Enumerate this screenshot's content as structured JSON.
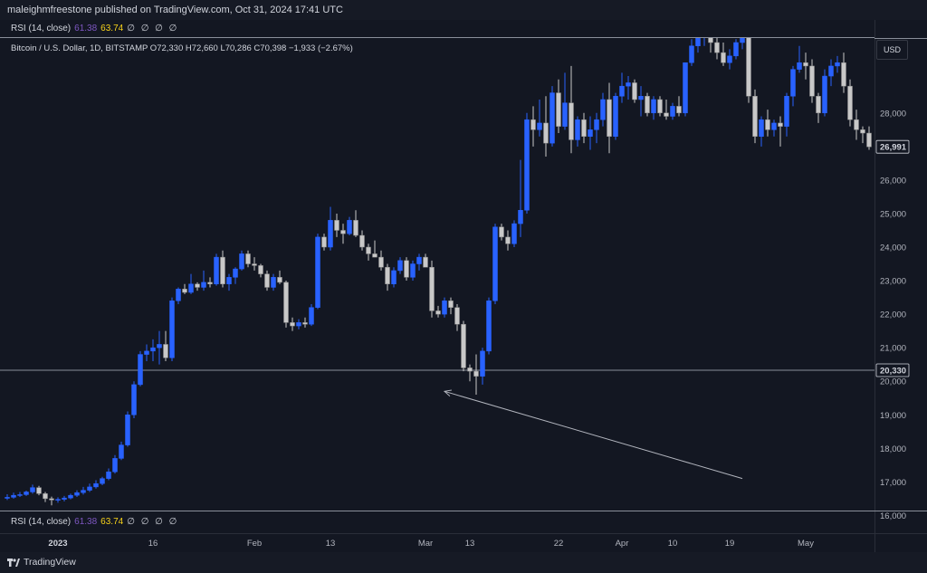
{
  "header": {
    "publisher_line": "maleighmfreestone published on TradingView.com, Oct 31, 2024 17:41 UTC"
  },
  "indicator": {
    "name": "RSI (14, close)",
    "value1": "61.38",
    "value2": "63.74",
    "placeholders": "∅ ∅ ∅ ∅"
  },
  "symbol_line": "Bitcoin / U.S. Dollar, 1D, BITSTAMP  O72,330  H72,660  L70,286  C70,398  −1,933 (−2.67%)",
  "currency": "USD",
  "footer": {
    "brand": "TradingView"
  },
  "colors": {
    "background": "#131722",
    "up": "#2962ff",
    "down": "#c8c8c8",
    "line": "#8a8f9a"
  },
  "chart_data": {
    "type": "candlestick",
    "title": "Bitcoin / U.S. Dollar, 1D, BITSTAMP",
    "ylabel": "USD",
    "ylim": [
      15000,
      29600
    ],
    "yticks": [
      "16,000",
      "17,000",
      "18,000",
      "19,000",
      "20,000",
      "21,000",
      "22,000",
      "23,000",
      "24,000",
      "25,000",
      "26,000",
      "28,000"
    ],
    "price_labels": {
      "horizontal_line": "20,330",
      "last_price": "26,991"
    },
    "horizontal_line_price": 20330,
    "xticks": [
      "2023",
      "16",
      "Feb",
      "13",
      "Mar",
      "13",
      "22",
      "Apr",
      "10",
      "19",
      "May"
    ],
    "annotations": [
      {
        "type": "arrow",
        "from": {
          "index": 116,
          "price": 17100
        },
        "to": {
          "index": 69,
          "price": 19700
        }
      }
    ],
    "candles": [
      [
        16510,
        16630,
        16460,
        16540
      ],
      [
        16540,
        16680,
        16500,
        16600
      ],
      [
        16600,
        16700,
        16550,
        16620
      ],
      [
        16620,
        16740,
        16580,
        16700
      ],
      [
        16700,
        16920,
        16650,
        16830
      ],
      [
        16830,
        16880,
        16600,
        16650
      ],
      [
        16650,
        16700,
        16400,
        16500
      ],
      [
        16500,
        16560,
        16300,
        16460
      ],
      [
        16460,
        16540,
        16380,
        16480
      ],
      [
        16480,
        16580,
        16420,
        16520
      ],
      [
        16520,
        16650,
        16480,
        16600
      ],
      [
        16600,
        16750,
        16550,
        16680
      ],
      [
        16680,
        16850,
        16620,
        16750
      ],
      [
        16750,
        16950,
        16700,
        16850
      ],
      [
        16850,
        17050,
        16800,
        16950
      ],
      [
        16950,
        17150,
        16900,
        17100
      ],
      [
        17100,
        17400,
        17050,
        17300
      ],
      [
        17300,
        17800,
        17250,
        17700
      ],
      [
        17700,
        18200,
        17650,
        18100
      ],
      [
        18100,
        19100,
        18050,
        19000
      ],
      [
        19000,
        20000,
        18900,
        19900
      ],
      [
        19900,
        20900,
        19850,
        20800
      ],
      [
        20800,
        21100,
        20600,
        20900
      ],
      [
        20900,
        21250,
        20600,
        21000
      ],
      [
        21000,
        21500,
        20500,
        21100
      ],
      [
        21100,
        21500,
        20600,
        20700
      ],
      [
        20700,
        22500,
        20600,
        22400
      ],
      [
        22400,
        22800,
        22300,
        22750
      ],
      [
        22750,
        22900,
        22600,
        22650
      ],
      [
        22650,
        23200,
        22600,
        22900
      ],
      [
        22900,
        22950,
        22700,
        22800
      ],
      [
        22800,
        23300,
        22700,
        22950
      ],
      [
        22950,
        23100,
        22800,
        22900
      ],
      [
        22900,
        23800,
        22850,
        23700
      ],
      [
        23700,
        23900,
        22800,
        22900
      ],
      [
        22900,
        23200,
        22700,
        23100
      ],
      [
        23100,
        23400,
        22900,
        23350
      ],
      [
        23350,
        23900,
        23300,
        23800
      ],
      [
        23800,
        23900,
        23400,
        23500
      ],
      [
        23500,
        23700,
        23300,
        23450
      ],
      [
        23450,
        23500,
        23100,
        23200
      ],
      [
        23200,
        23300,
        22700,
        22800
      ],
      [
        22800,
        23200,
        22700,
        23100
      ],
      [
        23100,
        23300,
        22900,
        22950
      ],
      [
        22950,
        23000,
        21600,
        21750
      ],
      [
        21750,
        21900,
        21500,
        21650
      ],
      [
        21650,
        21850,
        21550,
        21750
      ],
      [
        21750,
        21900,
        21600,
        21700
      ],
      [
        21700,
        22300,
        21650,
        22200
      ],
      [
        22200,
        24400,
        22150,
        24300
      ],
      [
        24300,
        24400,
        23900,
        24000
      ],
      [
        24000,
        25200,
        23900,
        24800
      ],
      [
        24800,
        25000,
        24300,
        24500
      ],
      [
        24500,
        24700,
        24100,
        24400
      ],
      [
        24400,
        24900,
        24350,
        24800
      ],
      [
        24800,
        25100,
        24300,
        24350
      ],
      [
        24350,
        24500,
        23900,
        24000
      ],
      [
        24000,
        24100,
        23600,
        23800
      ],
      [
        23800,
        24200,
        23700,
        23700
      ],
      [
        23700,
        23900,
        23300,
        23400
      ],
      [
        23400,
        23500,
        22700,
        22900
      ],
      [
        22900,
        23400,
        22800,
        23300
      ],
      [
        23300,
        23700,
        23200,
        23600
      ],
      [
        23600,
        23700,
        23000,
        23100
      ],
      [
        23100,
        23600,
        23000,
        23500
      ],
      [
        23500,
        23800,
        23300,
        23700
      ],
      [
        23700,
        23800,
        23400,
        23400
      ],
      [
        23400,
        23600,
        21900,
        22100
      ],
      [
        22100,
        22250,
        21900,
        22000
      ],
      [
        22000,
        22500,
        21900,
        22400
      ],
      [
        22400,
        22500,
        22000,
        22200
      ],
      [
        22200,
        22300,
        21500,
        21700
      ],
      [
        21700,
        21800,
        20300,
        20400
      ],
      [
        20400,
        20500,
        20000,
        20300
      ],
      [
        20300,
        20800,
        19600,
        20150
      ],
      [
        20150,
        21000,
        19900,
        20900
      ],
      [
        20900,
        22500,
        20800,
        22400
      ],
      [
        22400,
        24700,
        22300,
        24600
      ],
      [
        24600,
        24700,
        24200,
        24300
      ],
      [
        24300,
        24500,
        23900,
        24100
      ],
      [
        24100,
        24800,
        24000,
        24700
      ],
      [
        24700,
        26600,
        24300,
        25100
      ],
      [
        25100,
        28000,
        25000,
        27800
      ],
      [
        27800,
        28200,
        27000,
        27500
      ],
      [
        27500,
        28400,
        27300,
        27700
      ],
      [
        27700,
        28500,
        26700,
        27100
      ],
      [
        27100,
        28800,
        27000,
        28600
      ],
      [
        28600,
        29000,
        27400,
        27600
      ],
      [
        27600,
        29200,
        27500,
        28300
      ],
      [
        28300,
        29400,
        26800,
        27200
      ],
      [
        27200,
        27900,
        27000,
        27800
      ],
      [
        27800,
        28000,
        27100,
        27300
      ],
      [
        27300,
        27900,
        26900,
        27500
      ],
      [
        27500,
        28000,
        27100,
        27800
      ],
      [
        27800,
        28600,
        27600,
        28400
      ],
      [
        28400,
        28900,
        26800,
        27300
      ],
      [
        27300,
        28600,
        27200,
        28500
      ],
      [
        28500,
        29200,
        28300,
        28800
      ],
      [
        28800,
        29100,
        28400,
        28900
      ],
      [
        28900,
        29000,
        28300,
        28400
      ],
      [
        28400,
        28800,
        27900,
        28500
      ],
      [
        28500,
        28600,
        27900,
        28000
      ],
      [
        28000,
        28500,
        27800,
        28400
      ],
      [
        28400,
        28500,
        27900,
        28000
      ],
      [
        28000,
        28400,
        27800,
        27900
      ],
      [
        27900,
        28300,
        27800,
        28200
      ],
      [
        28200,
        28500,
        27900,
        28000
      ],
      [
        28000,
        29500,
        27900,
        29500
      ],
      [
        29500,
        30200,
        29400,
        30000
      ],
      [
        30000,
        30500,
        29800,
        30300
      ],
      [
        30300,
        30600,
        30000,
        30400
      ],
      [
        30400,
        30600,
        29800,
        30100
      ],
      [
        30100,
        30300,
        29600,
        29800
      ],
      [
        29800,
        30100,
        29400,
        29500
      ],
      [
        29500,
        29900,
        29300,
        29700
      ],
      [
        29700,
        30200,
        29600,
        30100
      ],
      [
        30100,
        30500,
        29900,
        30300
      ],
      [
        30300,
        30400,
        28300,
        28500
      ],
      [
        28500,
        28700,
        27100,
        27300
      ],
      [
        27300,
        27900,
        27000,
        27800
      ],
      [
        27800,
        28100,
        27300,
        27500
      ],
      [
        27500,
        27800,
        27300,
        27700
      ],
      [
        27700,
        27900,
        27000,
        27600
      ],
      [
        27600,
        28600,
        27300,
        28500
      ],
      [
        28500,
        29400,
        28200,
        29300
      ],
      [
        29300,
        30000,
        29200,
        29500
      ],
      [
        29500,
        29800,
        29000,
        29400
      ],
      [
        29400,
        29600,
        28300,
        28500
      ],
      [
        28500,
        28600,
        27700,
        28000
      ],
      [
        28000,
        29300,
        27900,
        29100
      ],
      [
        29100,
        29600,
        28800,
        29400
      ],
      [
        29400,
        29700,
        29200,
        29500
      ],
      [
        29500,
        29800,
        28600,
        28800
      ],
      [
        28800,
        29000,
        27600,
        27800
      ],
      [
        27800,
        28100,
        27200,
        27500
      ],
      [
        27500,
        27600,
        27100,
        27400
      ],
      [
        27400,
        27600,
        26900,
        26991
      ]
    ]
  }
}
